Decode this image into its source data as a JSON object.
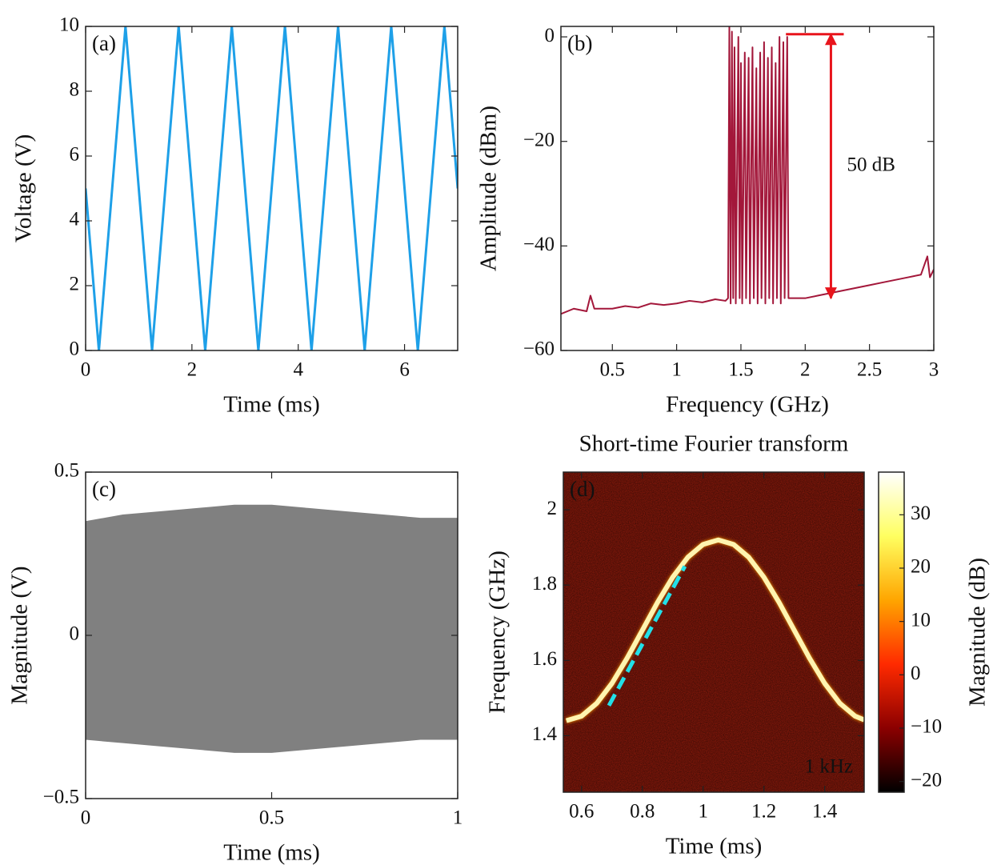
{
  "chart_data": [
    {
      "type": "line",
      "panel_label": "(a)",
      "x_label": "Time (ms)",
      "y_label": "Voltage (V)",
      "xlim": [
        0,
        7
      ],
      "ylim": [
        0,
        10
      ],
      "xticks": [
        0,
        2,
        4,
        6
      ],
      "yticks": [
        0,
        2,
        4,
        6,
        8,
        10
      ],
      "x": [
        0,
        0.25,
        0.75,
        1.25,
        1.75,
        2.25,
        2.75,
        3.25,
        3.75,
        4.25,
        4.75,
        5.25,
        5.75,
        6.25,
        6.75,
        7
      ],
      "series": [
        {
          "color": "#1ea0e8",
          "values": [
            5,
            0,
            10,
            0,
            10,
            0,
            10,
            0,
            10,
            0,
            10,
            0,
            10,
            0,
            10,
            5
          ]
        }
      ]
    },
    {
      "type": "line",
      "panel_label": "(b)",
      "x_label": "Frequency (GHz)",
      "y_label": "Amplitude (dBm)",
      "xlim": [
        0.1,
        3
      ],
      "ylim": [
        -60,
        2
      ],
      "xticks": [
        0.5,
        1,
        1.5,
        2,
        2.5,
        3
      ],
      "yticks": [
        {
          "value": -60,
          "label": "−60"
        },
        {
          "value": -40,
          "label": "−40"
        },
        {
          "value": -20,
          "label": "−20"
        },
        0
      ],
      "x": [
        0.1,
        0.2,
        0.3,
        0.33,
        0.36,
        0.5,
        0.6,
        0.7,
        0.8,
        0.9,
        1.0,
        1.1,
        1.2,
        1.3,
        1.38,
        1.4,
        1.41,
        1.42,
        1.43,
        1.44,
        1.45,
        1.46,
        1.48,
        1.49,
        1.5,
        1.51,
        1.53,
        1.54,
        1.56,
        1.57,
        1.59,
        1.6,
        1.62,
        1.63,
        1.65,
        1.66,
        1.68,
        1.69,
        1.71,
        1.72,
        1.74,
        1.75,
        1.77,
        1.78,
        1.8,
        1.81,
        1.83,
        1.84,
        1.86,
        1.87,
        1.9,
        2.0,
        2.1,
        2.2,
        2.3,
        2.4,
        2.5,
        2.6,
        2.7,
        2.8,
        2.9,
        2.95,
        2.97,
        3.0
      ],
      "series": [
        {
          "color": "#a3173a",
          "values": [
            -53,
            -52,
            -52.5,
            -49.5,
            -52,
            -52,
            -51.5,
            -51.8,
            -51,
            -51.3,
            -51,
            -50.5,
            -50.8,
            -50.2,
            -50.5,
            -50,
            2,
            -51,
            1,
            -50,
            -2,
            -51,
            0,
            -50,
            -5,
            -51,
            -3,
            -50,
            -4,
            -51,
            -2,
            -50,
            -6,
            -51,
            -3,
            -50,
            -1,
            -51,
            -4,
            -50,
            -2,
            -51,
            -5,
            -50,
            0,
            -51,
            -1,
            -50,
            0,
            -50,
            -50,
            -50,
            -49.5,
            -49,
            -48.5,
            -48,
            -47.5,
            -47,
            -46.5,
            -46,
            -45.5,
            -42,
            -46,
            -44.5
          ]
        }
      ],
      "annotation": {
        "text": "50 dB",
        "color": "#e8141c",
        "x": 2.2,
        "y_top": 0.5,
        "y_bottom": -50,
        "x_start": 1.85,
        "x_end": 2.3
      }
    },
    {
      "type": "area",
      "panel_label": "(c)",
      "x_label": "Time (ms)",
      "y_label": "Magnitude (V)",
      "xlim": [
        0,
        1
      ],
      "ylim": [
        -0.5,
        0.5
      ],
      "xticks": [
        0,
        0.5,
        1
      ],
      "yticks": [
        {
          "value": -0.5,
          "label": "−0.5"
        },
        0,
        0.5
      ],
      "color": "#808080",
      "x": [
        0,
        0.1,
        0.2,
        0.3,
        0.4,
        0.5,
        0.6,
        0.7,
        0.8,
        0.9,
        1
      ],
      "high": [
        0.35,
        0.37,
        0.38,
        0.39,
        0.4,
        0.4,
        0.39,
        0.38,
        0.37,
        0.36,
        0.36
      ],
      "low": [
        -0.32,
        -0.33,
        -0.34,
        -0.35,
        -0.36,
        -0.36,
        -0.35,
        -0.34,
        -0.33,
        -0.32,
        -0.32
      ]
    },
    {
      "type": "spectrogram",
      "title": "Short-time Fourier transform",
      "panel_label": "(d)",
      "annotation": "1 kHz",
      "x_label": "Time (ms)",
      "y_label": "Frequency (GHz)",
      "xlim": [
        0.54,
        1.53
      ],
      "ylim": [
        1.25,
        2.1
      ],
      "xticks": [
        0.6,
        0.8,
        1,
        1.2,
        1.4
      ],
      "yticks": [
        1.4,
        1.6,
        1.8,
        2
      ],
      "series": [
        {
          "color": "#fff4b0",
          "x": [
            0.55,
            0.6,
            0.65,
            0.7,
            0.75,
            0.8,
            0.85,
            0.9,
            0.95,
            1.0,
            1.05,
            1.1,
            1.15,
            1.2,
            1.25,
            1.3,
            1.35,
            1.4,
            1.45,
            1.5,
            1.53
          ],
          "values": [
            1.44,
            1.452,
            1.486,
            1.539,
            1.606,
            1.68,
            1.754,
            1.821,
            1.874,
            1.908,
            1.92,
            1.908,
            1.874,
            1.821,
            1.754,
            1.68,
            1.606,
            1.539,
            1.486,
            1.452,
            1.442
          ]
        },
        {
          "color": "#22e0e8",
          "dashed": true,
          "x": [
            0.69,
            0.94
          ],
          "values": [
            1.48,
            1.85
          ]
        }
      ],
      "colorbar": {
        "label": "Magnitude (dB)",
        "lim": [
          -22,
          38
        ],
        "ticks": [
          {
            "value": -20,
            "label": "−20"
          },
          {
            "value": -10,
            "label": "−10"
          },
          0,
          10,
          20,
          30
        ],
        "colors": [
          "#000000",
          "#8b0000",
          "#ff2a00",
          "#ffa500",
          "#ffff60",
          "#ffffff"
        ]
      }
    }
  ]
}
